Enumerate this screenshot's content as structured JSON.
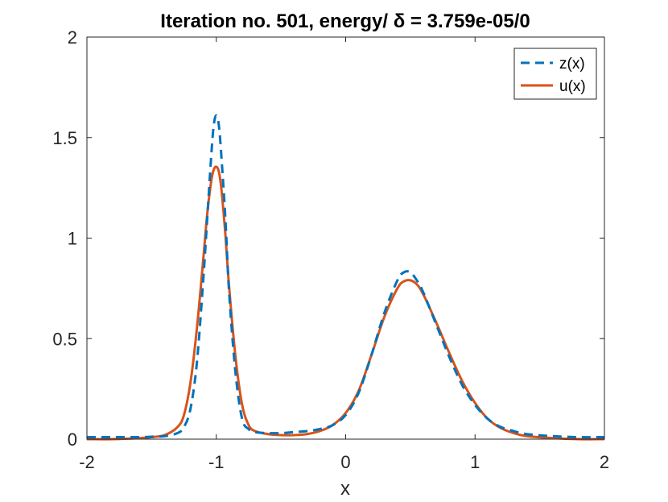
{
  "chart_data": {
    "type": "line",
    "title": "Iteration no. 501, energy/ δ = 3.759e-05/0",
    "xlabel": "x",
    "ylabel": "",
    "xlim": [
      -2,
      2
    ],
    "ylim": [
      0,
      2
    ],
    "xticks": [
      -2,
      -1,
      0,
      1,
      2
    ],
    "xtick_labels": [
      "-2",
      "-1",
      "0",
      "1",
      "2"
    ],
    "yticks": [
      0,
      0.5,
      1,
      1.5,
      2
    ],
    "ytick_labels": [
      "0",
      "0.5",
      "1",
      "1.5",
      "2"
    ],
    "grid": false,
    "legend_position": "top-right",
    "series": [
      {
        "name": "z(x)",
        "color": "#0072BD",
        "style": "dashed",
        "x": [
          -2.0,
          -1.8,
          -1.6,
          -1.5,
          -1.4,
          -1.3,
          -1.25,
          -1.2,
          -1.15,
          -1.1,
          -1.07,
          -1.04,
          -1.02,
          -1.0,
          -0.98,
          -0.96,
          -0.93,
          -0.9,
          -0.85,
          -0.8,
          -0.75,
          -0.7,
          -0.6,
          -0.5,
          -0.4,
          -0.3,
          -0.2,
          -0.1,
          0.0,
          0.1,
          0.2,
          0.3,
          0.4,
          0.45,
          0.5,
          0.55,
          0.6,
          0.7,
          0.8,
          0.9,
          1.0,
          1.1,
          1.2,
          1.3,
          1.4,
          1.6,
          1.8,
          2.0
        ],
        "y": [
          0.01,
          0.01,
          0.01,
          0.012,
          0.015,
          0.03,
          0.06,
          0.15,
          0.38,
          0.8,
          1.1,
          1.4,
          1.56,
          1.61,
          1.56,
          1.4,
          1.1,
          0.72,
          0.32,
          0.1,
          0.05,
          0.035,
          0.03,
          0.03,
          0.035,
          0.04,
          0.05,
          0.07,
          0.12,
          0.23,
          0.42,
          0.63,
          0.79,
          0.83,
          0.83,
          0.79,
          0.73,
          0.57,
          0.41,
          0.27,
          0.17,
          0.1,
          0.06,
          0.04,
          0.025,
          0.015,
          0.01,
          0.01
        ]
      },
      {
        "name": "u(x)",
        "color": "#D95319",
        "style": "solid",
        "x": [
          -2.0,
          -1.8,
          -1.6,
          -1.5,
          -1.4,
          -1.3,
          -1.25,
          -1.2,
          -1.15,
          -1.1,
          -1.07,
          -1.04,
          -1.02,
          -1.0,
          -0.98,
          -0.96,
          -0.93,
          -0.9,
          -0.85,
          -0.8,
          -0.75,
          -0.7,
          -0.6,
          -0.5,
          -0.4,
          -0.3,
          -0.2,
          -0.1,
          0.0,
          0.1,
          0.2,
          0.3,
          0.4,
          0.45,
          0.5,
          0.55,
          0.6,
          0.7,
          0.8,
          0.9,
          1.0,
          1.1,
          1.2,
          1.3,
          1.4,
          1.6,
          1.8,
          2.0
        ],
        "y": [
          0.0,
          0.0,
          0.005,
          0.01,
          0.02,
          0.06,
          0.12,
          0.28,
          0.55,
          0.9,
          1.12,
          1.28,
          1.34,
          1.355,
          1.33,
          1.24,
          1.02,
          0.75,
          0.4,
          0.17,
          0.07,
          0.04,
          0.025,
          0.02,
          0.02,
          0.025,
          0.04,
          0.07,
          0.13,
          0.24,
          0.42,
          0.61,
          0.75,
          0.785,
          0.79,
          0.77,
          0.72,
          0.58,
          0.43,
          0.29,
          0.18,
          0.1,
          0.055,
          0.03,
          0.015,
          0.005,
          0.0,
          0.0
        ]
      }
    ]
  }
}
